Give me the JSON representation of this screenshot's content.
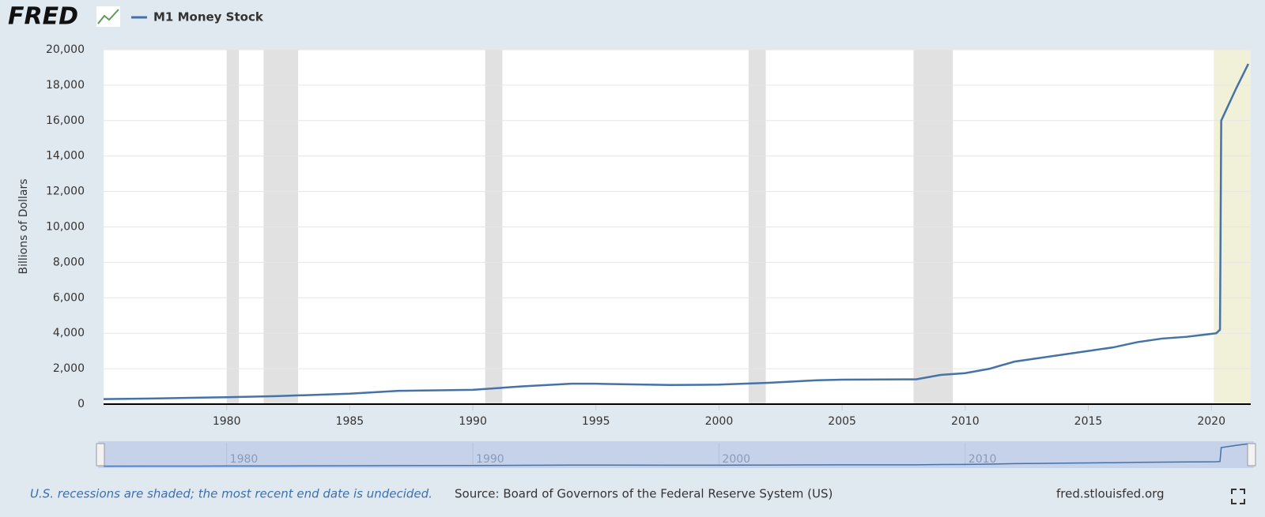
{
  "logo": "FRED",
  "chart_data": {
    "type": "line",
    "y_label": "Billions of Dollars",
    "x": [
      1975,
      1977,
      1980,
      1982,
      1985,
      1987,
      1990,
      1992,
      1994,
      1995,
      1998,
      2000,
      2001,
      2002,
      2004,
      2005,
      2008,
      2009,
      2010,
      2011,
      2012,
      2013,
      2014,
      2015,
      2016,
      2017,
      2018,
      2019,
      2020.2,
      2020.35,
      2020.4,
      2020.6,
      2021,
      2021.5
    ],
    "series": [
      {
        "name": "M1 Money Stock",
        "color": "#4572a7",
        "values": [
          285,
          320,
          390,
          450,
          590,
          750,
          810,
          1000,
          1150,
          1150,
          1080,
          1100,
          1150,
          1200,
          1350,
          1380,
          1400,
          1650,
          1750,
          2000,
          2400,
          2600,
          2800,
          3000,
          3200,
          3500,
          3700,
          3800,
          4000,
          4200,
          16000,
          16600,
          17800,
          19200
        ]
      }
    ],
    "xlim": [
      1975,
      2021.6
    ],
    "xticks": [
      1980,
      1985,
      1990,
      1995,
      2000,
      2005,
      2010,
      2015,
      2020
    ],
    "ylim": [
      0,
      20000
    ],
    "yticks": [
      0,
      {
        "value": 2000,
        "label": "2,000"
      },
      {
        "value": 4000,
        "label": "4,000"
      },
      {
        "value": 6000,
        "label": "6,000"
      },
      {
        "value": 8000,
        "label": "8,000"
      },
      {
        "value": 10000,
        "label": "10,000"
      },
      {
        "value": 12000,
        "label": "12,000"
      },
      {
        "value": 14000,
        "label": "14,000"
      },
      {
        "value": 16000,
        "label": "16,000"
      },
      {
        "value": 18000,
        "label": "18,000"
      },
      {
        "value": 20000,
        "label": "20,000"
      }
    ],
    "grid": true,
    "recessions": [
      [
        1980,
        1980.5
      ],
      [
        1981.5,
        1982.9
      ],
      [
        1990.5,
        1991.2
      ],
      [
        2001.2,
        2001.9
      ],
      [
        2007.9,
        2009.5
      ]
    ],
    "recession_color": "#e1e1e1",
    "ongoing_recession": [
      2020.1,
      2021.6
    ],
    "ongoing_recession_color": "#f1f0d8",
    "navigator_xticks": [
      1980,
      1990,
      2000,
      2010
    ],
    "recession_note": "U.S. recessions are shaded; the most recent end date is undecided.",
    "source": "Source: Board of Governors of the Federal Reserve System (US)",
    "url": "fred.stlouisfed.org"
  }
}
